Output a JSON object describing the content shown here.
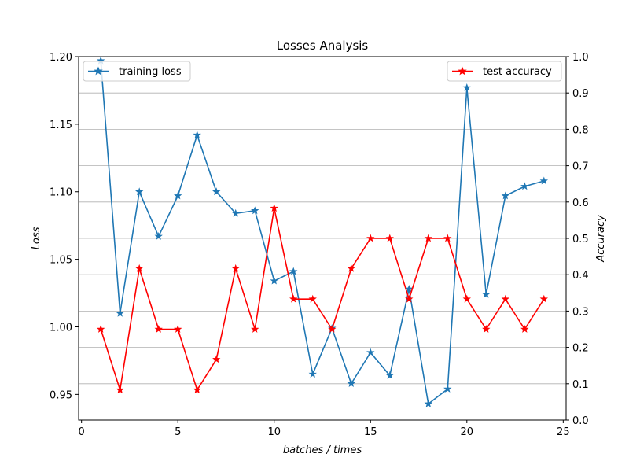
{
  "chart_data": {
    "type": "line",
    "title": "Losses Analysis",
    "xlabel": "batches / times",
    "ylabel_left": "Loss",
    "ylabel_right": "Accuracy",
    "xlim": [
      -0.15,
      25.15
    ],
    "ylim_left": [
      0.931,
      1.2
    ],
    "ylim_right": [
      0.0,
      1.0
    ],
    "xticks": [
      0,
      5,
      10,
      15,
      20,
      25
    ],
    "yticks_left": [
      0.95,
      1.0,
      1.05,
      1.1,
      1.15,
      1.2
    ],
    "yticks_left_labels": [
      "0.95",
      "1.00",
      "1.05",
      "1.10",
      "1.15",
      "1.20"
    ],
    "yticks_right": [
      0.0,
      0.1,
      0.2,
      0.3,
      0.4,
      0.5,
      0.6,
      0.7,
      0.8,
      0.9,
      1.0
    ],
    "yticks_right_labels": [
      "0.0",
      "0.1",
      "0.2",
      "0.3",
      "0.4",
      "0.5",
      "0.6",
      "0.7",
      "0.8",
      "0.9",
      "1.0"
    ],
    "grid": "horizontal (right axis)",
    "x": [
      1,
      2,
      3,
      4,
      5,
      6,
      7,
      8,
      9,
      10,
      11,
      12,
      13,
      14,
      15,
      16,
      17,
      18,
      19,
      20,
      21,
      22,
      23,
      24
    ],
    "series": [
      {
        "name": "training loss",
        "axis": "left",
        "color": "#1f77b4",
        "marker": "star",
        "legend": "top-left",
        "values": [
          1.197,
          1.01,
          1.1,
          1.067,
          1.097,
          1.142,
          1.1,
          1.084,
          1.086,
          1.034,
          1.041,
          0.965,
          0.999,
          0.958,
          0.981,
          0.964,
          1.028,
          0.943,
          0.954,
          1.177,
          1.024,
          1.097,
          1.104,
          1.108
        ]
      },
      {
        "name": "test accuracy",
        "axis": "right",
        "color": "#ff0000",
        "marker": "star",
        "legend": "top-right",
        "values": [
          0.25,
          0.083,
          0.417,
          0.25,
          0.25,
          0.083,
          0.167,
          0.417,
          0.25,
          0.583,
          0.333,
          0.333,
          0.25,
          0.417,
          0.5,
          0.5,
          0.333,
          0.5,
          0.5,
          0.333,
          0.25,
          0.333,
          0.25,
          0.333
        ]
      }
    ]
  }
}
